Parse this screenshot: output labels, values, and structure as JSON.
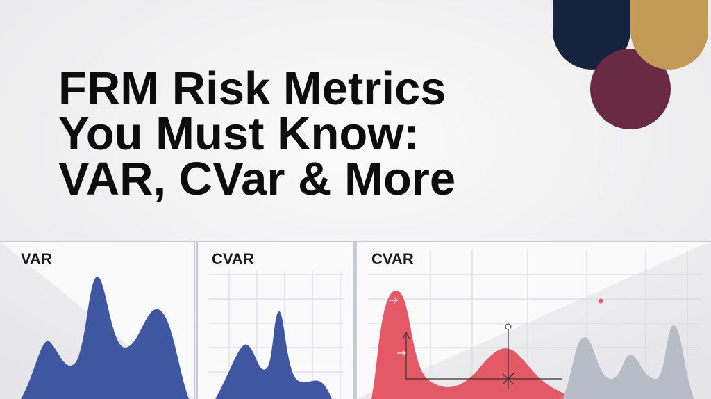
{
  "header": {
    "title": [
      "FRM Risk Metrics",
      "You Must Know:",
      "VAR, CVar & More"
    ]
  },
  "panels": [
    {
      "label": "VAR"
    },
    {
      "label": "CVAR"
    },
    {
      "label": "CVAR"
    }
  ]
}
